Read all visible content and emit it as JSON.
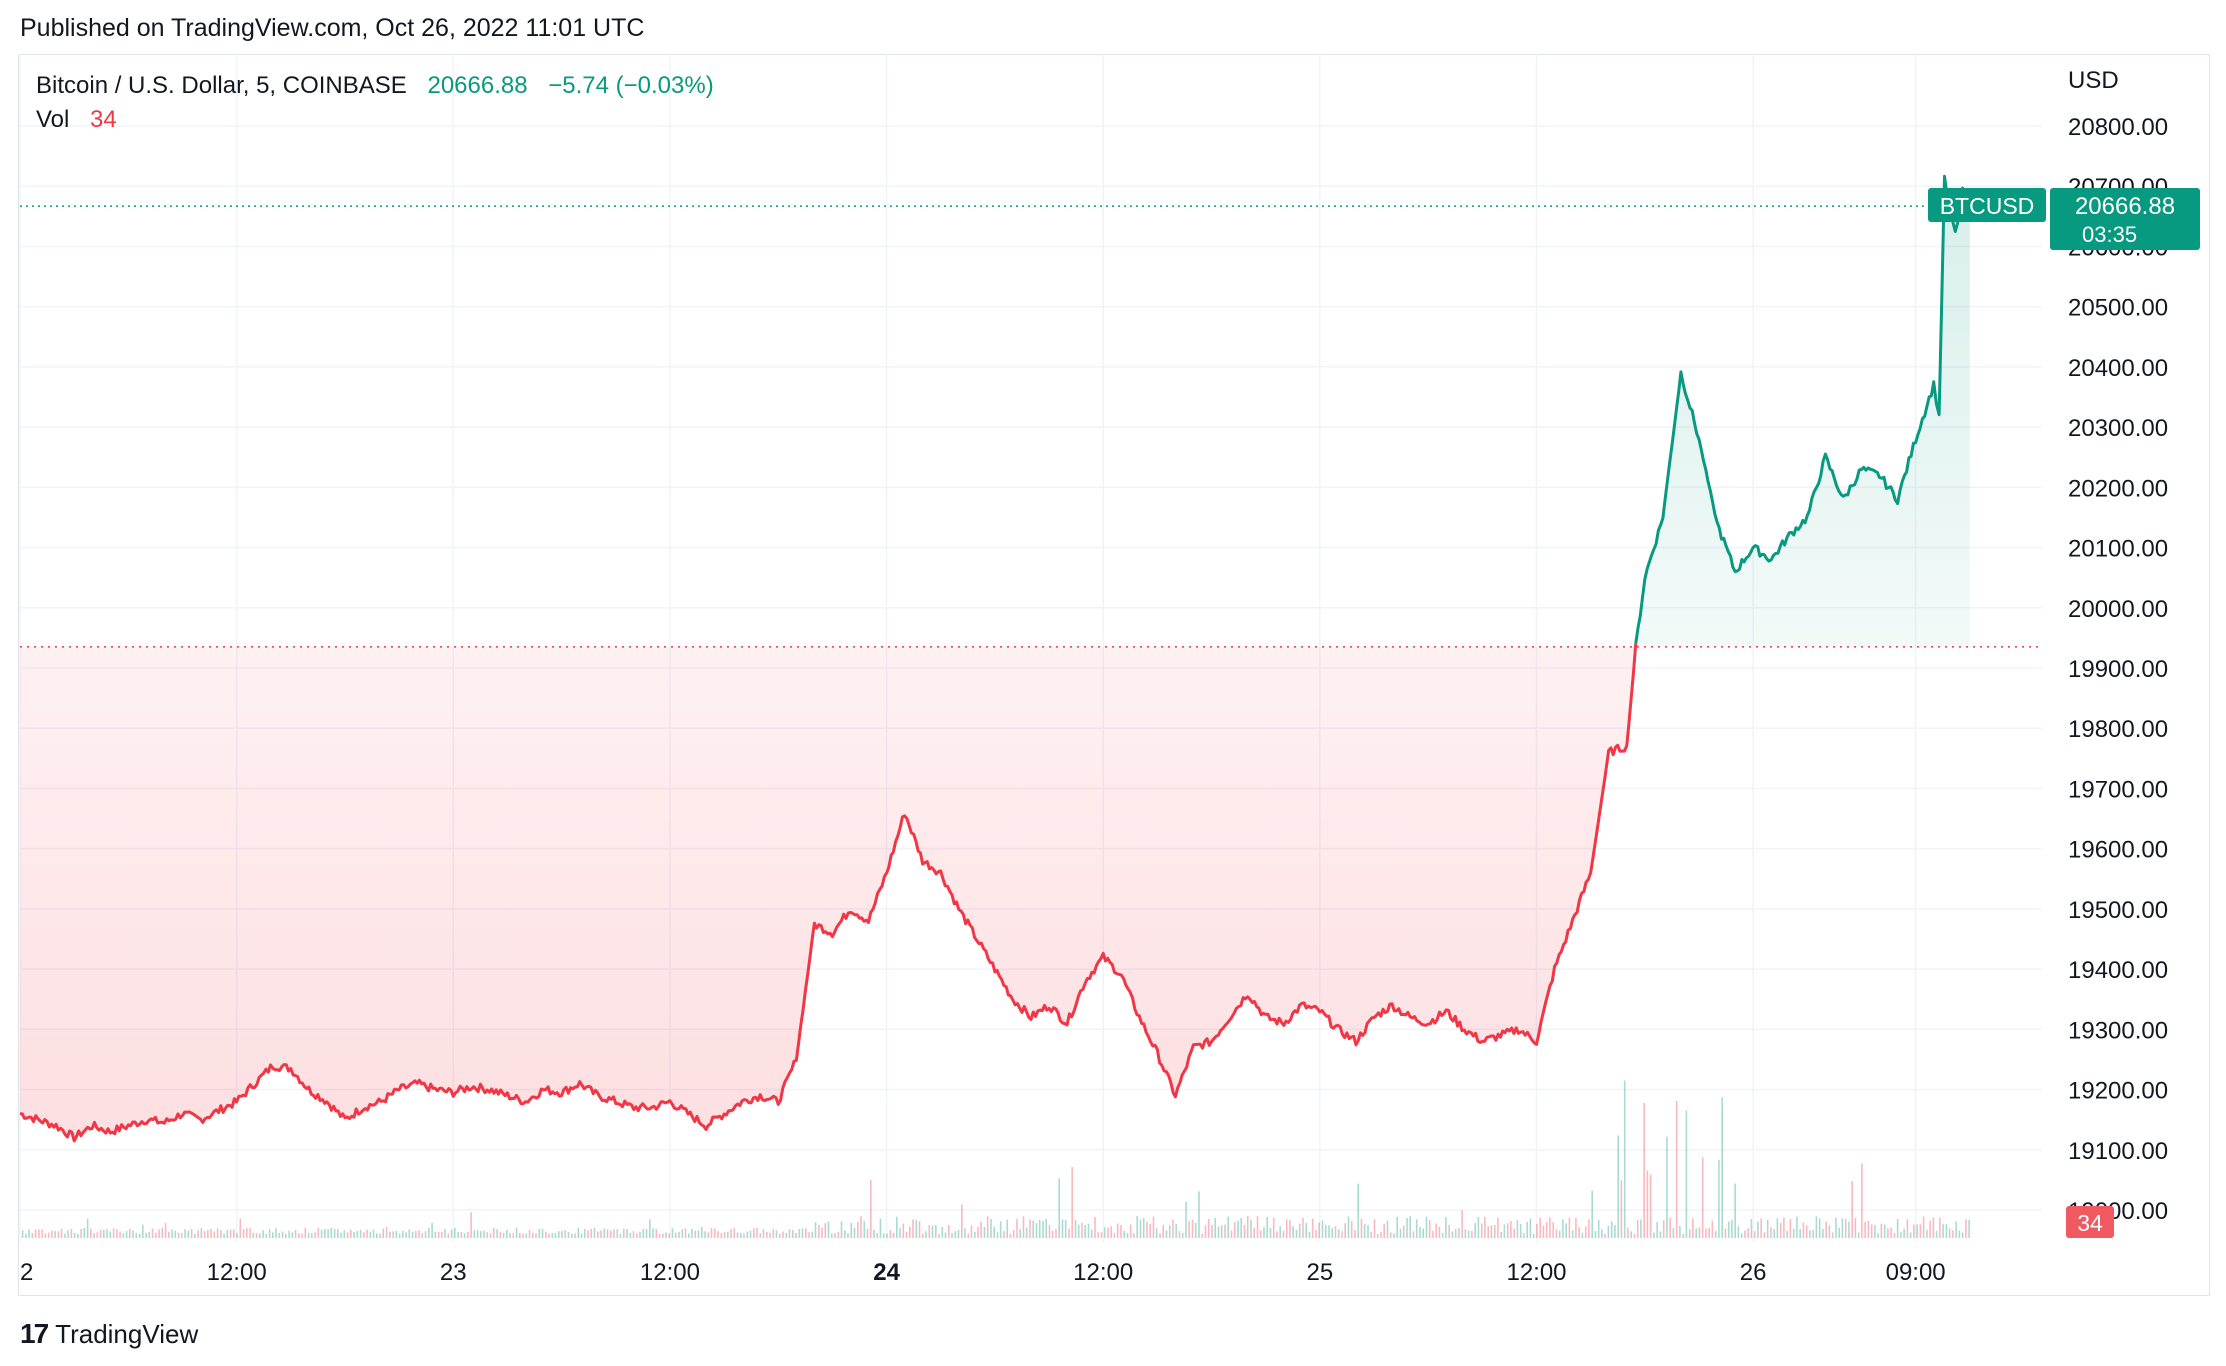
{
  "published": "Published on TradingView.com, Oct 26, 2022 11:01 UTC",
  "legend": {
    "symbol": "Bitcoin / U.S. Dollar, 5, COINBASE",
    "price": "20666.88",
    "change": "−5.74 (−0.03%)"
  },
  "volume_legend": {
    "label": "Vol",
    "value": "34"
  },
  "price_tag": {
    "symbol": "BTCUSD",
    "price": "20666.88",
    "countdown": "03:35"
  },
  "volume_tag": "34",
  "footer": {
    "brand": "TradingView"
  },
  "colors": {
    "up": "#089981",
    "down": "#f23645",
    "grid": "#f0f3fa",
    "text": "#131722"
  },
  "chart_data": {
    "type": "line",
    "title": "Bitcoin / U.S. Dollar, 5, COINBASE",
    "ylabel": "USD",
    "ylim": [
      18950,
      20880
    ],
    "y_ticks": [
      "20800.00",
      "20700.00",
      "20600.00",
      "20500.00",
      "20400.00",
      "20300.00",
      "20200.00",
      "20100.00",
      "20000.00",
      "19900.00",
      "19800.00",
      "19700.00",
      "19600.00",
      "19500.00",
      "19400.00",
      "19300.00",
      "19200.00",
      "19100.00",
      "19000.00"
    ],
    "x_ticks": [
      {
        "label": "2",
        "t": 0,
        "bold": false
      },
      {
        "label": "12:00",
        "t": 12,
        "bold": false
      },
      {
        "label": "23",
        "t": 24,
        "bold": false
      },
      {
        "label": "12:00",
        "t": 36,
        "bold": false
      },
      {
        "label": "24",
        "t": 48,
        "bold": true
      },
      {
        "label": "12:00",
        "t": 60,
        "bold": false
      },
      {
        "label": "25",
        "t": 72,
        "bold": false
      },
      {
        "label": "12:00",
        "t": 84,
        "bold": false
      },
      {
        "label": "26",
        "t": 96,
        "bold": false
      },
      {
        "label": "09:00",
        "t": 105,
        "bold": false
      }
    ],
    "baseline": 19935,
    "last_price": 20666.88,
    "series": [
      {
        "points": [
          [
            0,
            19160
          ],
          [
            1,
            19150
          ],
          [
            2,
            19140
          ],
          [
            3,
            19120
          ],
          [
            4,
            19140
          ],
          [
            5,
            19130
          ],
          [
            6,
            19140
          ],
          [
            7,
            19150
          ],
          [
            8,
            19145
          ],
          [
            9,
            19160
          ],
          [
            10,
            19150
          ],
          [
            11,
            19165
          ],
          [
            12,
            19180
          ],
          [
            13,
            19210
          ],
          [
            14,
            19240
          ],
          [
            15,
            19235
          ],
          [
            16,
            19200
          ],
          [
            17,
            19180
          ],
          [
            18,
            19150
          ],
          [
            19,
            19170
          ],
          [
            20,
            19180
          ],
          [
            21,
            19200
          ],
          [
            22,
            19210
          ],
          [
            23,
            19200
          ],
          [
            24,
            19195
          ],
          [
            25,
            19205
          ],
          [
            26,
            19200
          ],
          [
            27,
            19190
          ],
          [
            28,
            19180
          ],
          [
            29,
            19200
          ],
          [
            30,
            19195
          ],
          [
            31,
            19210
          ],
          [
            32,
            19190
          ],
          [
            33,
            19180
          ],
          [
            34,
            19170
          ],
          [
            35,
            19170
          ],
          [
            36,
            19180
          ],
          [
            37,
            19160
          ],
          [
            38,
            19140
          ],
          [
            39,
            19160
          ],
          [
            40,
            19180
          ],
          [
            41,
            19190
          ],
          [
            42,
            19180
          ],
          [
            43,
            19250
          ],
          [
            44,
            19475
          ],
          [
            45,
            19460
          ],
          [
            46,
            19500
          ],
          [
            47,
            19480
          ],
          [
            48,
            19560
          ],
          [
            49,
            19660
          ],
          [
            50,
            19580
          ],
          [
            51,
            19560
          ],
          [
            52,
            19500
          ],
          [
            53,
            19450
          ],
          [
            54,
            19400
          ],
          [
            55,
            19350
          ],
          [
            56,
            19320
          ],
          [
            57,
            19340
          ],
          [
            58,
            19310
          ],
          [
            59,
            19380
          ],
          [
            60,
            19420
          ],
          [
            61,
            19390
          ],
          [
            62,
            19320
          ],
          [
            63,
            19260
          ],
          [
            64,
            19190
          ],
          [
            65,
            19270
          ],
          [
            66,
            19280
          ],
          [
            67,
            19320
          ],
          [
            68,
            19360
          ],
          [
            69,
            19320
          ],
          [
            70,
            19310
          ],
          [
            71,
            19340
          ],
          [
            72,
            19330
          ],
          [
            73,
            19300
          ],
          [
            74,
            19280
          ],
          [
            75,
            19320
          ],
          [
            76,
            19340
          ],
          [
            77,
            19320
          ],
          [
            78,
            19310
          ],
          [
            79,
            19330
          ],
          [
            80,
            19300
          ],
          [
            81,
            19280
          ],
          [
            82,
            19290
          ],
          [
            83,
            19300
          ],
          [
            84,
            19280
          ],
          [
            85,
            19400
          ],
          [
            86,
            19480
          ],
          [
            87,
            19560
          ],
          [
            88,
            19760
          ],
          [
            89,
            19770
          ],
          [
            89.5,
            19935
          ],
          [
            90,
            20050
          ],
          [
            90.5,
            20100
          ],
          [
            91,
            20150
          ],
          [
            92,
            20390
          ],
          [
            93,
            20280
          ],
          [
            94,
            20140
          ],
          [
            95,
            20060
          ],
          [
            96,
            20100
          ],
          [
            97,
            20080
          ],
          [
            98,
            20120
          ],
          [
            99,
            20150
          ],
          [
            100,
            20250
          ],
          [
            101,
            20180
          ],
          [
            102,
            20230
          ],
          [
            103,
            20220
          ],
          [
            104,
            20180
          ],
          [
            105,
            20280
          ],
          [
            106,
            20370
          ],
          [
            106.3,
            20320
          ],
          [
            106.6,
            20710
          ],
          [
            107.2,
            20620
          ],
          [
            107.6,
            20690
          ],
          [
            108,
            20666.88
          ]
        ]
      }
    ]
  }
}
